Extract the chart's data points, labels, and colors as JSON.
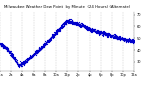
{
  "title": "Milwaukee Weather Dew Point  by Minute  (24 Hours) (Alternate)",
  "dot_color": "#0000cc",
  "bg_color": "#ffffff",
  "grid_color": "#aaaaaa",
  "title_color": "#000000",
  "tick_color": "#000000",
  "dot_size": 0.8,
  "ylim": [
    22,
    72
  ],
  "xlim": [
    0,
    1440
  ],
  "ytick_positions": [
    30,
    40,
    50,
    60,
    70
  ],
  "ytick_labels": [
    "30",
    "40",
    "50",
    "60",
    "70"
  ],
  "xtick_positions": [
    0,
    120,
    240,
    360,
    480,
    600,
    720,
    840,
    960,
    1080,
    1200,
    1320,
    1440
  ],
  "xtick_labels": [
    "12a",
    "2a",
    "4a",
    "6a",
    "8a",
    "10a",
    "12p",
    "2p",
    "4p",
    "6p",
    "8p",
    "10p",
    "12a"
  ],
  "num_points": 1440
}
